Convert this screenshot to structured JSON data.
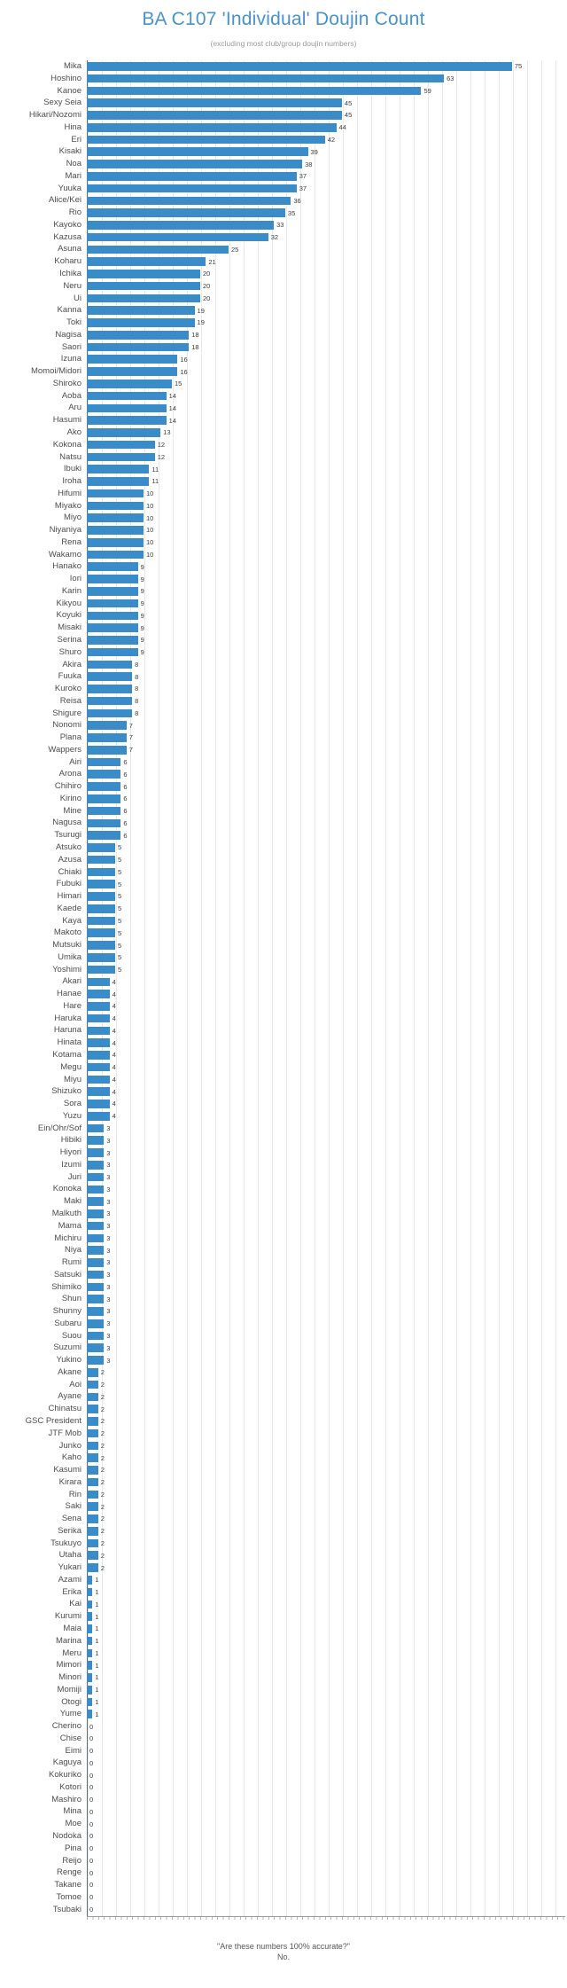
{
  "title": "BA C107 'Individual' Doujin Count",
  "subtitle": "(excluding most club/group doujin numbers)",
  "footer": {
    "line1": "\"Are these numbers 100% accurate?\"",
    "line2": "No."
  },
  "colors": {
    "bar": "#3a8cc9",
    "title": "#4793ce",
    "subtitle": "#9a9a9a",
    "gridline": "#e9e9e9",
    "axis_line": "#9a9a9a"
  },
  "chart_data": {
    "type": "bar",
    "orientation": "horizontal",
    "title": "BA C107 'Individual' Doujin Count",
    "subtitle": "(excluding most club/group doujin numbers)",
    "xlabel": "",
    "ylabel": "",
    "xlim": [
      0,
      84.4
    ],
    "grid": true,
    "value_labels": true,
    "legend": "none",
    "categories": [
      "Mika",
      "Hoshino",
      "Kanoe",
      "Sexy Seia",
      "Hikari/Nozomi",
      "Hina",
      "Eri",
      "Kisaki",
      "Noa",
      "Mari",
      "Yuuka",
      "Alice/Kei",
      "Rio",
      "Kayoko",
      "Kazusa",
      "Asuna",
      "Koharu",
      "Ichika",
      "Neru",
      "Ui",
      "Kanna",
      "Toki",
      "Nagisa",
      "Saori",
      "Izuna",
      "Momoi/Midori",
      "Shiroko",
      "Aoba",
      "Aru",
      "Hasumi",
      "Ako",
      "Kokona",
      "Natsu",
      "Ibuki",
      "Iroha",
      "Hifumi",
      "Miyako",
      "Miyo",
      "Niyaniya",
      "Rena",
      "Wakamo",
      "Hanako",
      "Iori",
      "Karin",
      "Kikyou",
      "Koyuki",
      "Misaki",
      "Serina",
      "Shuro",
      "Akira",
      "Fuuka",
      "Kuroko",
      "Reisa",
      "Shigure",
      "Nonomi",
      "Plana",
      "Wappers",
      "Airi",
      "Arona",
      "Chihiro",
      "Kirino",
      "Mine",
      "Nagusa",
      "Tsurugi",
      "Atsuko",
      "Azusa",
      "Chiaki",
      "Fubuki",
      "Himari",
      "Kaede",
      "Kaya",
      "Makoto",
      "Mutsuki",
      "Umika",
      "Yoshimi",
      "Akari",
      "Hanae",
      "Hare",
      "Haruka",
      "Haruna",
      "Hinata",
      "Kotama",
      "Megu",
      "Miyu",
      "Shizuko",
      "Sora",
      "Yuzu",
      "Ein/Ohr/Sof",
      "Hibiki",
      "Hiyori",
      "Izumi",
      "Juri",
      "Konoka",
      "Maki",
      "Malkuth",
      "Mama",
      "Michiru",
      "Niya",
      "Rumi",
      "Satsuki",
      "Shimiko",
      "Shun",
      "Shunny",
      "Subaru",
      "Suou",
      "Suzumi",
      "Yukino",
      "Akane",
      "Aoi",
      "Ayane",
      "Chinatsu",
      "GSC President",
      "JTF Mob",
      "Junko",
      "Kaho",
      "Kasumi",
      "Kirara",
      "Rin",
      "Saki",
      "Sena",
      "Serika",
      "Tsukuyo",
      "Utaha",
      "Yukari",
      "Azami",
      "Erika",
      "Kai",
      "Kurumi",
      "Maia",
      "Marina",
      "Meru",
      "Mimori",
      "Minori",
      "Momiji",
      "Otogi",
      "Yume",
      "Cherino",
      "Chise",
      "Eimi",
      "Kaguya",
      "Kokuriko",
      "Kotori",
      "Mashiro",
      "Mina",
      "Moe",
      "Nodoka",
      "Pina",
      "Reijo",
      "Renge",
      "Takane",
      "Tomoe",
      "Tsubaki"
    ],
    "values": [
      75,
      63,
      59,
      45,
      45,
      44,
      42,
      39,
      38,
      37,
      37,
      36,
      35,
      33,
      32,
      25,
      21,
      20,
      20,
      20,
      19,
      19,
      18,
      18,
      16,
      16,
      15,
      14,
      14,
      14,
      13,
      12,
      12,
      11,
      11,
      10,
      10,
      10,
      10,
      10,
      10,
      9,
      9,
      9,
      9,
      9,
      9,
      9,
      9,
      8,
      8,
      8,
      8,
      8,
      7,
      7,
      7,
      6,
      6,
      6,
      6,
      6,
      6,
      6,
      5,
      5,
      5,
      5,
      5,
      5,
      5,
      5,
      5,
      5,
      5,
      4,
      4,
      4,
      4,
      4,
      4,
      4,
      4,
      4,
      4,
      4,
      4,
      3,
      3,
      3,
      3,
      3,
      3,
      3,
      3,
      3,
      3,
      3,
      3,
      3,
      3,
      3,
      3,
      3,
      3,
      3,
      3,
      2,
      2,
      2,
      2,
      2,
      2,
      2,
      2,
      2,
      2,
      2,
      2,
      2,
      2,
      2,
      2,
      2,
      1,
      1,
      1,
      1,
      1,
      1,
      1,
      1,
      1,
      1,
      1,
      1,
      0,
      0,
      0,
      0,
      0,
      0,
      0,
      0,
      0,
      0,
      0,
      0,
      0,
      0,
      0,
      0
    ]
  }
}
